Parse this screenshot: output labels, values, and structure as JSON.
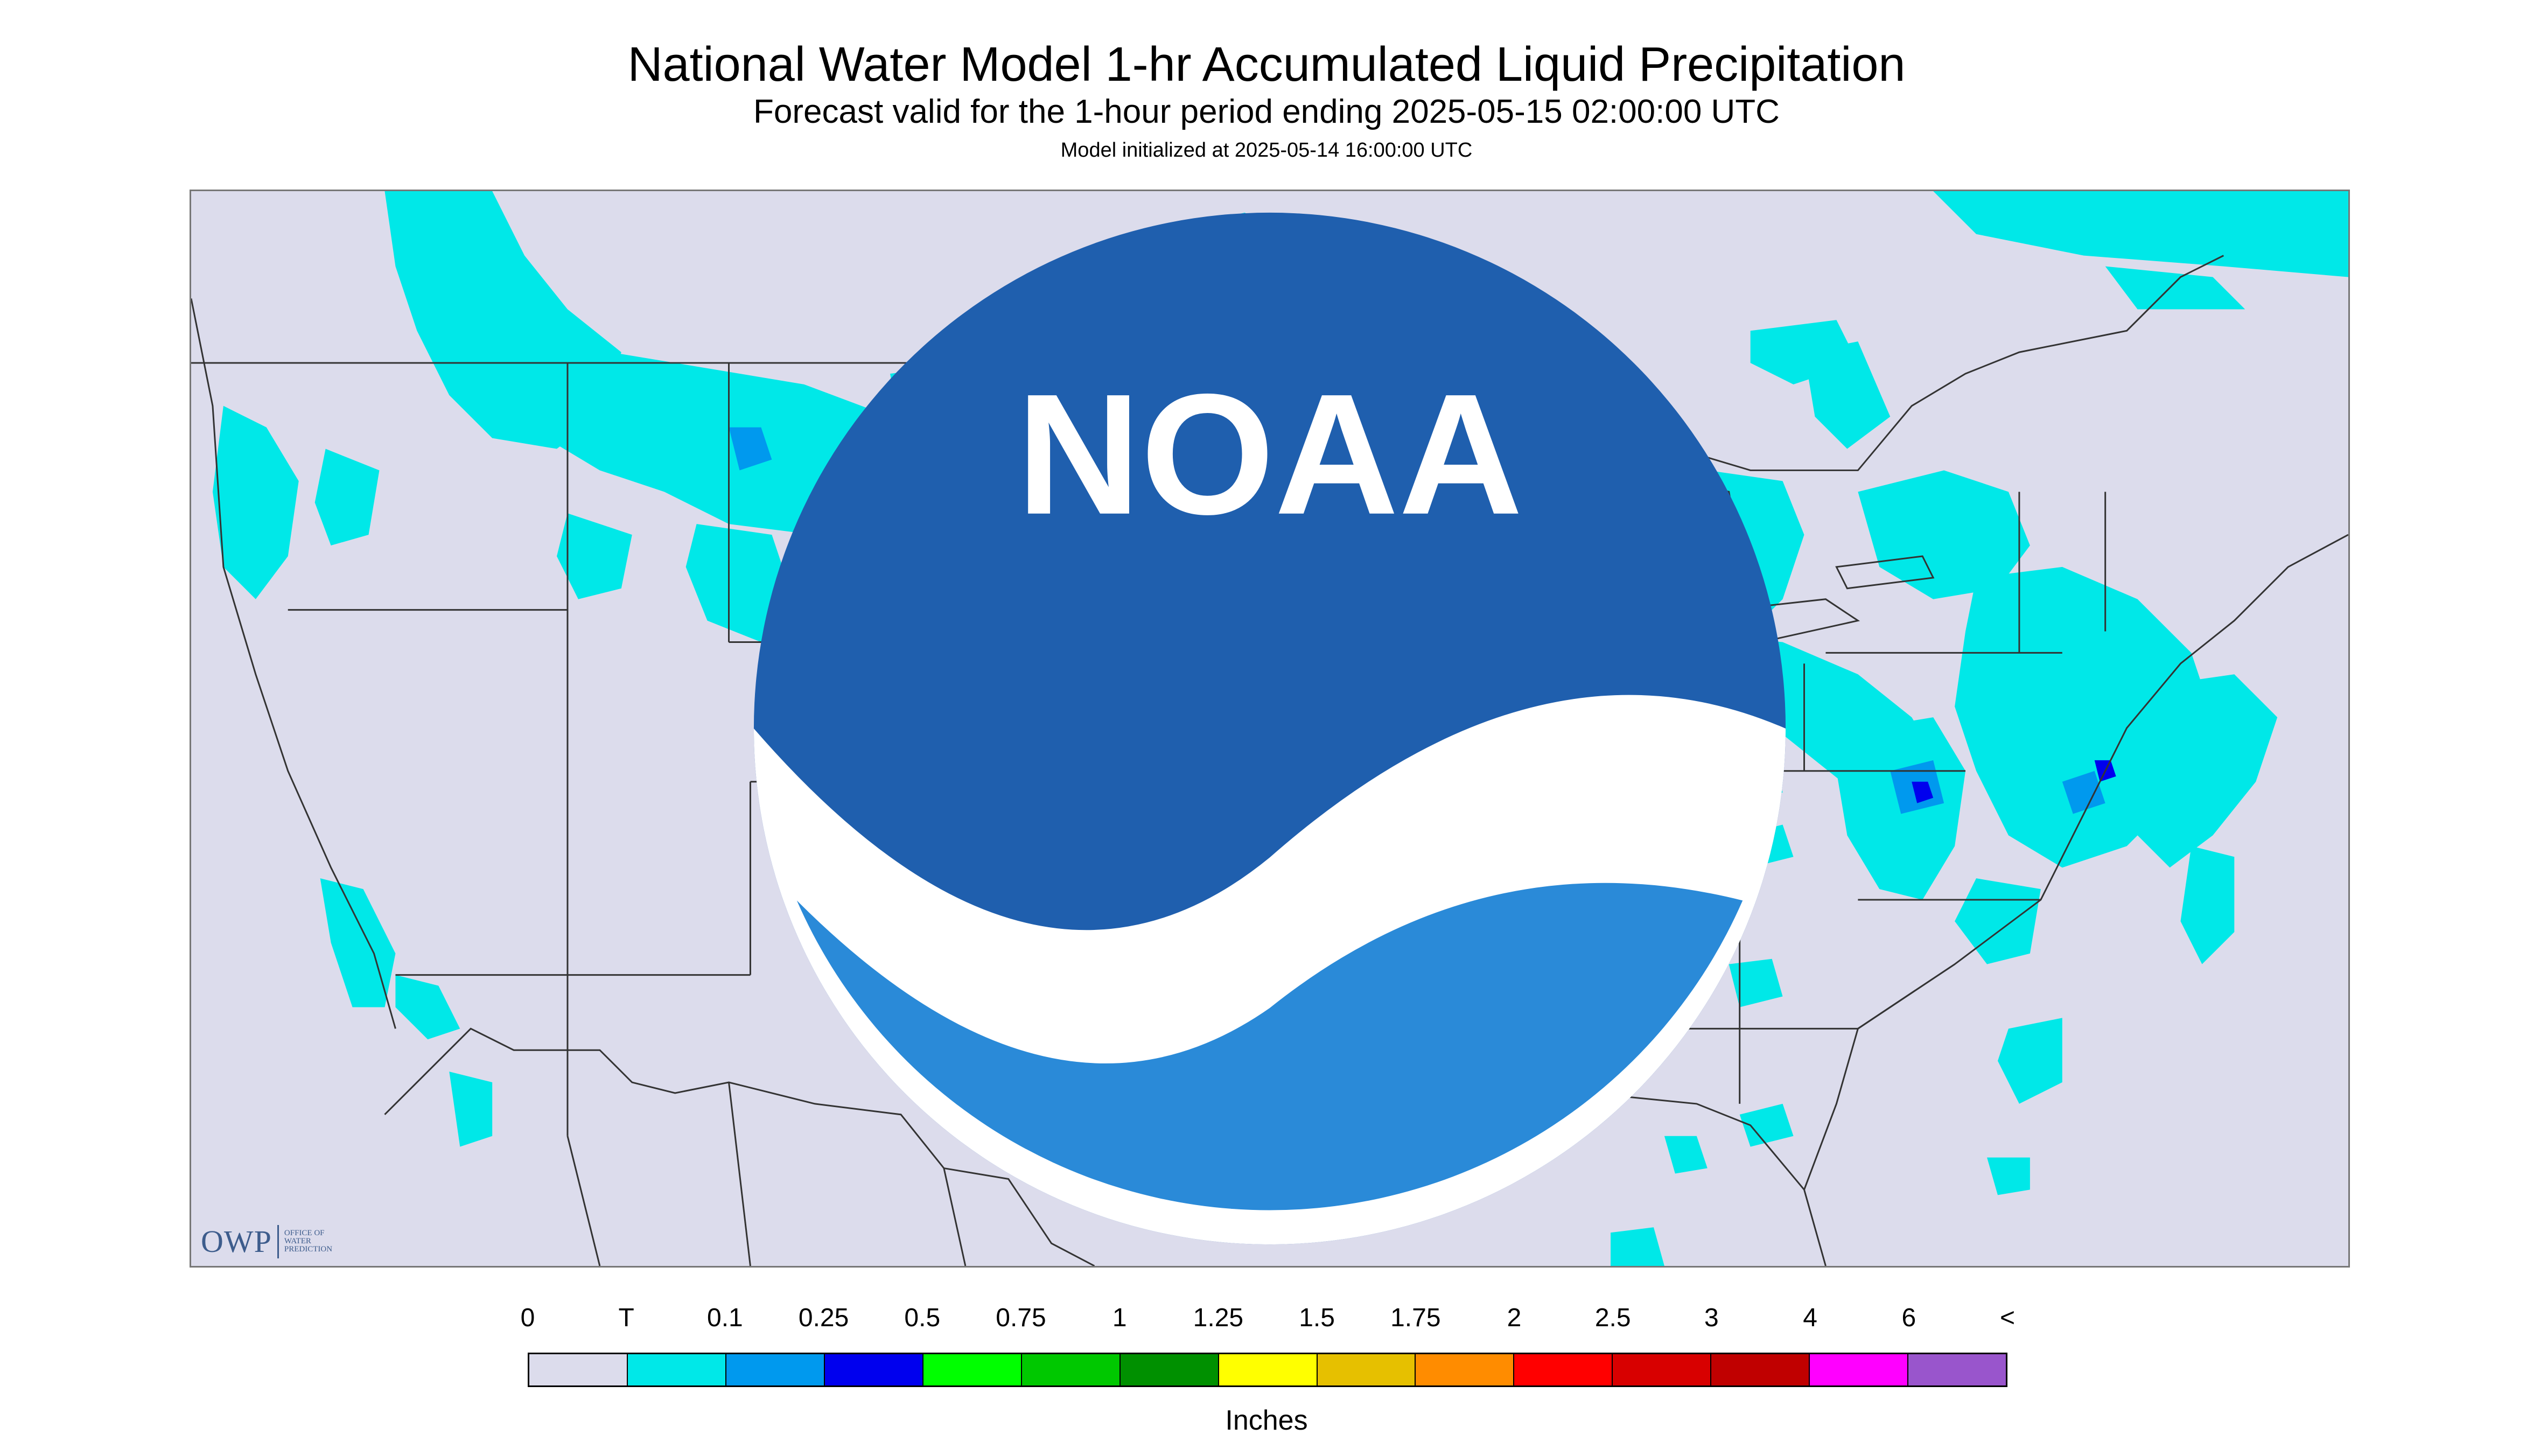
{
  "title": "National Water Model 1-hr Accumulated Liquid Precipitation",
  "subtitle": "Forecast valid for the 1-hour period ending 2025-05-15 02:00:00 UTC",
  "init_text": "Model initialized at 2025-05-14 16:00:00 UTC",
  "map": {
    "background_color": "#dcdcec",
    "outside_domain_color": "#dcdcec",
    "boundary_color": "#333333"
  },
  "logos": {
    "owp": {
      "letters": "OWP",
      "text_lines": [
        "Office of",
        "Water",
        "Prediction"
      ]
    },
    "noaa": {
      "letters": "NOAA"
    }
  },
  "legend": {
    "labels": [
      "0",
      "T",
      "0.1",
      "0.25",
      "0.5",
      "0.75",
      "1",
      "1.25",
      "1.5",
      "1.75",
      "2",
      "2.5",
      "3",
      "4",
      "6",
      "<"
    ],
    "colors": [
      "#dcdcec",
      "#00e8e8",
      "#0099ee",
      "#0000ee",
      "#00ff00",
      "#00c800",
      "#009000",
      "#ffff00",
      "#e6c000",
      "#ff8c00",
      "#ff0000",
      "#d80000",
      "#c00000",
      "#ff00ff",
      "#9955cc"
    ],
    "units": "Inches"
  }
}
